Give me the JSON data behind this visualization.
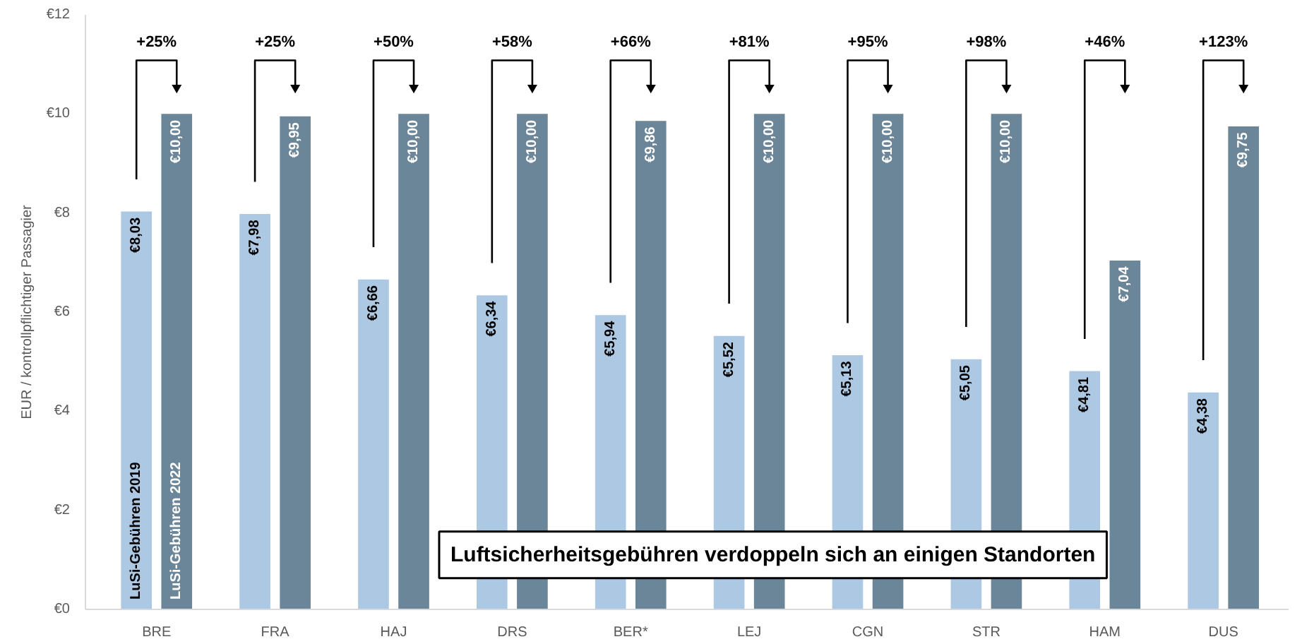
{
  "chart_data": {
    "type": "bar",
    "ylabel": "EUR / kontrollpflichtiger Passagier",
    "categories": [
      "BRE",
      "FRA",
      "HAJ",
      "DRS",
      "BER*",
      "LEJ",
      "CGN",
      "STR",
      "HAM",
      "DUS"
    ],
    "series": [
      {
        "name": "LuSi-Gebühren 2019",
        "color": "#adc8e3",
        "values": [
          8.03,
          7.98,
          6.66,
          6.34,
          5.94,
          5.52,
          5.13,
          5.05,
          4.81,
          4.38
        ],
        "value_labels": [
          "€8,03",
          "€7,98",
          "€6,66",
          "€6,34",
          "€5,94",
          "€5,52",
          "€5,13",
          "€5,05",
          "€4,81",
          "€4,38"
        ]
      },
      {
        "name": "LuSi-Gebühren 2022",
        "color": "#6b8699",
        "values": [
          10.0,
          9.95,
          10.0,
          10.0,
          9.86,
          10.0,
          10.0,
          10.0,
          7.04,
          9.75
        ],
        "value_labels": [
          "€10,00",
          "€9,95",
          "€10,00",
          "€10,00",
          "€9,86",
          "€10,00",
          "€10,00",
          "€10,00",
          "€7,04",
          "€9,75"
        ]
      }
    ],
    "ylim": [
      0,
      12
    ],
    "yticks": [
      {
        "value": 0,
        "label": "€0"
      },
      {
        "value": 2,
        "label": "€2"
      },
      {
        "value": 4,
        "label": "€4"
      },
      {
        "value": 6,
        "label": "€6"
      },
      {
        "value": 8,
        "label": "€8"
      },
      {
        "value": 10,
        "label": "€10"
      },
      {
        "value": 12,
        "label": "€12"
      }
    ],
    "grid": false,
    "legend": false,
    "annotations": [
      "+25%",
      "+25%",
      "+50%",
      "+58%",
      "+66%",
      "+81%",
      "+95%",
      "+98%",
      "+46%",
      "+123%",
      "Luftsicherheitsgebühren verdoppeln sich an einigen Standorten"
    ]
  }
}
